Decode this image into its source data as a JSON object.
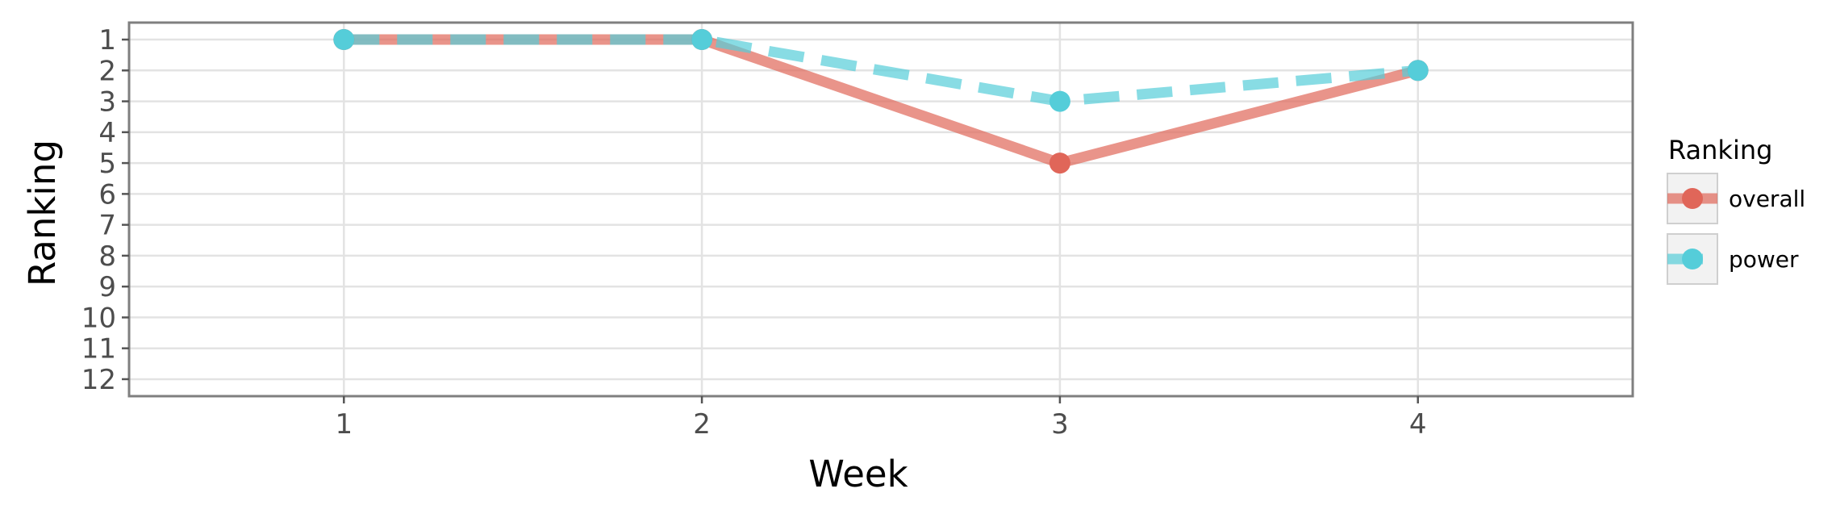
{
  "chart_data": {
    "type": "line",
    "xlabel": "Week",
    "ylabel": "Ranking",
    "x": [
      1,
      2,
      3,
      4
    ],
    "x_ticks": [
      "1",
      "2",
      "3",
      "4"
    ],
    "xlim": [
      0.4,
      4.6
    ],
    "y_ticks": [
      "1",
      "2",
      "3",
      "4",
      "5",
      "6",
      "7",
      "8",
      "9",
      "10",
      "11",
      "12"
    ],
    "ylim": [
      12.55,
      0.45
    ],
    "y_reversed": true,
    "grid": true,
    "legend": {
      "title": "Ranking",
      "position": "right"
    },
    "series": [
      {
        "name": "overall",
        "values": [
          1,
          1,
          5,
          2
        ],
        "color": "#e06659",
        "line_style": "solid"
      },
      {
        "name": "power",
        "values": [
          1,
          1,
          3,
          2
        ],
        "color": "#55cdd9",
        "line_style": "dashed"
      }
    ]
  }
}
